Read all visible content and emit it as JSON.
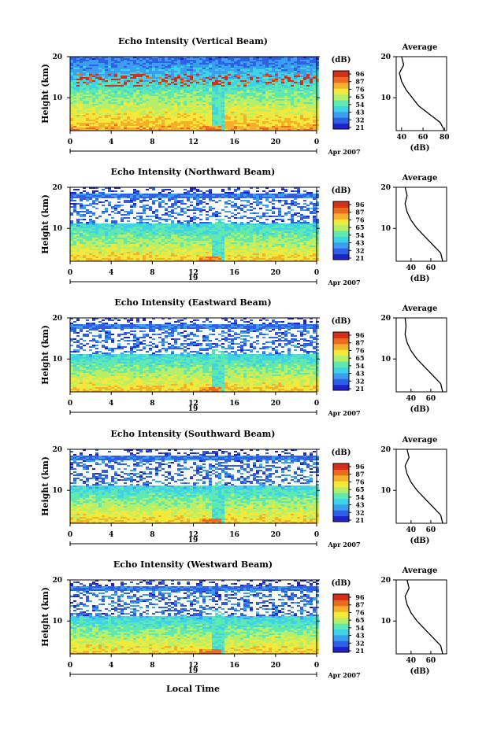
{
  "colorbar": {
    "unit": "(dB)",
    "ticks": [
      "96",
      "87",
      "76",
      "65",
      "54",
      "43",
      "32",
      "21"
    ],
    "colors": [
      "#1f22c8",
      "#2f5fe6",
      "#3a9ff0",
      "#3fd3e6",
      "#5fe8b0",
      "#b6f06a",
      "#f2e93a",
      "#f6b02a",
      "#ee6a1e",
      "#d42f1a"
    ]
  },
  "month_label": "Apr 2007",
  "xlabel_common": "Local Time",
  "panels": [
    {
      "title": "Echo Intensity (Vertical Beam)",
      "date_label": "",
      "ylabel": "Height (km)",
      "y_ticks": [
        "20",
        "10"
      ],
      "x_ticks": [
        "0",
        "4",
        "8",
        "12",
        "16",
        "20",
        "0"
      ],
      "avg": {
        "title": "Average",
        "xlabel": "(dB)",
        "x_ticks": [
          "40",
          "60",
          "80"
        ],
        "y_ticks": [
          "20",
          "10"
        ]
      }
    },
    {
      "title": "Echo Intensity (Northward Beam)",
      "date_label": "19",
      "ylabel": "Height (km)",
      "y_ticks": [
        "20",
        "10"
      ],
      "x_ticks": [
        "0",
        "4",
        "8",
        "12",
        "16",
        "20",
        "0"
      ],
      "avg": {
        "title": "Average",
        "xlabel": "(dB)",
        "x_ticks": [
          "40",
          "60"
        ],
        "y_ticks": [
          "20",
          "10"
        ]
      }
    },
    {
      "title": "Echo Intensity (Eastward Beam)",
      "date_label": "19",
      "ylabel": "Height (km)",
      "y_ticks": [
        "20",
        "10"
      ],
      "x_ticks": [
        "0",
        "4",
        "8",
        "12",
        "16",
        "20",
        "0"
      ],
      "avg": {
        "title": "Average",
        "xlabel": "(dB)",
        "x_ticks": [
          "40",
          "60"
        ],
        "y_ticks": [
          "20",
          "10"
        ]
      }
    },
    {
      "title": "Echo Intensity (Southward Beam)",
      "date_label": "19",
      "ylabel": "Height (km)",
      "y_ticks": [
        "20",
        "10"
      ],
      "x_ticks": [
        "0",
        "4",
        "8",
        "12",
        "16",
        "20",
        "0"
      ],
      "avg": {
        "title": "Average",
        "xlabel": "(dB)",
        "x_ticks": [
          "40",
          "60"
        ],
        "y_ticks": [
          "20",
          "10"
        ]
      }
    },
    {
      "title": "Echo Intensity (Westward Beam)",
      "date_label": "19",
      "ylabel": "Height (km)",
      "y_ticks": [
        "20",
        "10"
      ],
      "x_ticks": [
        "0",
        "4",
        "8",
        "12",
        "16",
        "20",
        "0"
      ],
      "avg": {
        "title": "Average",
        "xlabel": "(dB)",
        "x_ticks": [
          "40",
          "60"
        ],
        "y_ticks": [
          "20",
          "10"
        ]
      }
    }
  ],
  "chart_data": {
    "type": "heatmap",
    "x_range_hours": [
      0,
      24
    ],
    "y_range_km": [
      2,
      20
    ],
    "value_range_db": [
      21,
      96
    ],
    "profiles": [
      {
        "beam": "Vertical",
        "height_km": [
          2,
          4,
          6,
          8,
          10,
          12,
          14,
          16,
          18,
          20
        ],
        "avg_db": [
          80,
          76,
          66,
          56,
          50,
          44,
          40,
          38,
          42,
          40
        ]
      },
      {
        "beam": "Northward",
        "height_km": [
          2,
          4,
          6,
          8,
          10,
          12,
          14,
          16,
          18,
          20
        ],
        "avg_db": [
          72,
          70,
          62,
          54,
          46,
          40,
          36,
          34,
          36,
          34
        ]
      },
      {
        "beam": "Eastward",
        "height_km": [
          2,
          4,
          6,
          8,
          10,
          12,
          14,
          16,
          18,
          20
        ],
        "avg_db": [
          72,
          70,
          62,
          54,
          46,
          40,
          36,
          34,
          35,
          34
        ]
      },
      {
        "beam": "Southward",
        "height_km": [
          2,
          4,
          6,
          8,
          10,
          12,
          14,
          16,
          18,
          20
        ],
        "avg_db": [
          72,
          70,
          62,
          54,
          46,
          40,
          36,
          34,
          38,
          36
        ]
      },
      {
        "beam": "Westward",
        "height_km": [
          2,
          4,
          6,
          8,
          10,
          12,
          14,
          16,
          18,
          20
        ],
        "avg_db": [
          72,
          70,
          62,
          54,
          46,
          40,
          36,
          34,
          38,
          36
        ]
      }
    ]
  }
}
